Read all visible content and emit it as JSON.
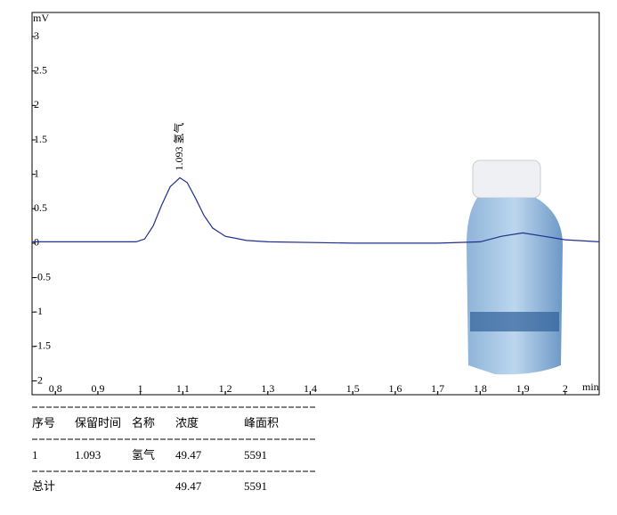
{
  "chart_data": {
    "type": "line",
    "y_label": "mV",
    "x_label": "min",
    "xlim": [
      0.745,
      2.08
    ],
    "ylim": [
      -2.2,
      3.35
    ],
    "xticks": [
      {
        "value": 0.8,
        "label": "0,8"
      },
      {
        "value": 0.9,
        "label": "0,9"
      },
      1,
      {
        "value": 1.1,
        "label": "1,1"
      },
      {
        "value": 1.2,
        "label": "1,2"
      },
      {
        "value": 1.3,
        "label": "1,3"
      },
      {
        "value": 1.4,
        "label": "1,4"
      },
      {
        "value": 1.5,
        "label": "1,5"
      },
      {
        "value": 1.6,
        "label": "1,6"
      },
      {
        "value": 1.7,
        "label": "1,7"
      },
      {
        "value": 1.8,
        "label": "1,8"
      },
      {
        "value": 1.9,
        "label": "1,9"
      },
      2
    ],
    "yticks": [
      3,
      2.5,
      2,
      1.5,
      1,
      0.5,
      0,
      -0.5,
      -1,
      -1.5,
      -2
    ],
    "series": [
      {
        "color": "#1f2f8f",
        "x": [
          0.745,
          0.95,
          0.99,
          1.01,
          1.03,
          1.05,
          1.07,
          1.093,
          1.11,
          1.13,
          1.15,
          1.17,
          1.2,
          1.25,
          1.3,
          1.5,
          1.6,
          1.7,
          1.8,
          1.85,
          1.9,
          1.95,
          2.0,
          2.08
        ],
        "values": [
          0.02,
          0.02,
          0.02,
          0.06,
          0.25,
          0.55,
          0.82,
          0.95,
          0.88,
          0.65,
          0.4,
          0.22,
          0.1,
          0.04,
          0.02,
          0.0,
          0.0,
          0.0,
          0.02,
          0.1,
          0.15,
          0.1,
          0.05,
          0.02
        ]
      }
    ],
    "annotations": [
      {
        "text": "1.093 氢气",
        "x": 1.093,
        "y": 0.95
      }
    ]
  },
  "table": {
    "header": [
      "序号",
      "保留时间",
      "名称",
      "浓度",
      "峰面积"
    ],
    "rows": [
      [
        "1",
        "1.093",
        "氢气",
        "49.47",
        "5591"
      ]
    ],
    "total": {
      "label": "总计",
      "concentration": "49.47",
      "area": "5591"
    }
  }
}
